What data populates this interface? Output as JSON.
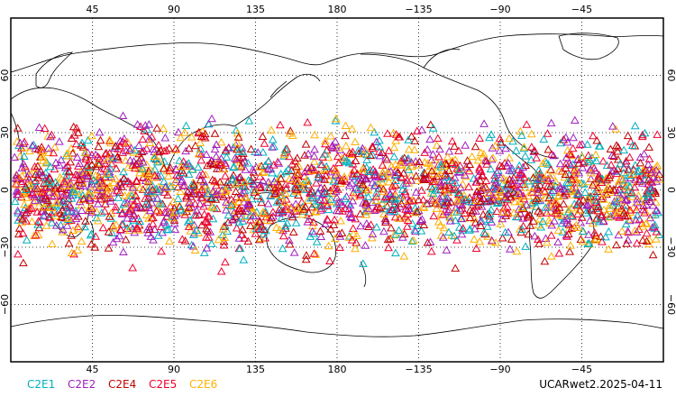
{
  "map": {
    "projection": "cylindrical-equidistant",
    "lon_range": [
      0,
      360
    ],
    "lat_range": [
      -90,
      90
    ],
    "top_lon_labels": [
      "45",
      "90",
      "135",
      "180",
      "−135",
      "−90",
      "−45"
    ],
    "bottom_lon_labels": [
      "45",
      "90",
      "135",
      "180",
      "−135",
      "−90",
      "−45"
    ],
    "left_lat_labels": [
      "60",
      "30",
      "0",
      "−30",
      "−60"
    ],
    "right_lat_labels": [
      "60",
      "30",
      "0",
      "−30",
      "−60"
    ],
    "grid": true,
    "grid_style": "dotted"
  },
  "legend": {
    "items": [
      {
        "label": "C2E1",
        "color": "#00b0c0"
      },
      {
        "label": "C2E2",
        "color": "#a020c0"
      },
      {
        "label": "C2E4",
        "color": "#c00000"
      },
      {
        "label": "C2E5",
        "color": "#f00030"
      },
      {
        "label": "C2E6",
        "color": "#ffb000"
      }
    ]
  },
  "footer": {
    "stamp": "UCARwet2.2025-04-11"
  },
  "markers": {
    "symbol": "triangle-outline",
    "distribution": "dense occultation points between roughly 45N and 45S, all longitudes"
  }
}
